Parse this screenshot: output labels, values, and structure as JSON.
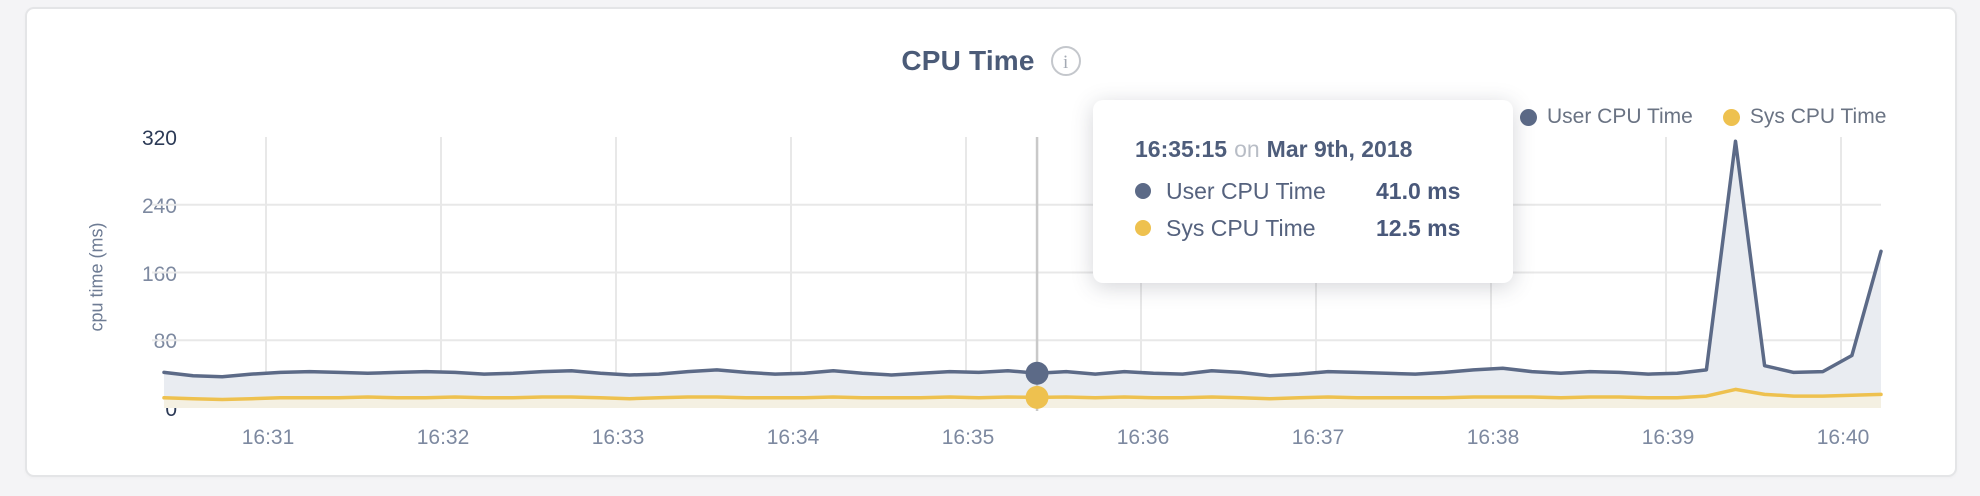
{
  "card": {
    "title": "CPU Time",
    "info_icon_glyph": "i"
  },
  "legend": {
    "items": [
      {
        "label": "User CPU Time",
        "color": "#5c6a87"
      },
      {
        "label": "Sys CPU Time",
        "color": "#eec14f"
      }
    ]
  },
  "tooltip": {
    "time": "16:35:15",
    "connector": "on",
    "date": "Mar 9th, 2018",
    "rows": [
      {
        "label": "User CPU Time",
        "value": "41.0 ms",
        "color": "#5c6a87"
      },
      {
        "label": "Sys CPU Time",
        "value": "12.5 ms",
        "color": "#eec14f"
      }
    ]
  },
  "chart_data": {
    "type": "area",
    "title": "CPU Time",
    "ylabel": "cpu time (ms)",
    "ylim": [
      0,
      320
    ],
    "y_ticks": [
      320,
      240,
      160,
      80,
      0
    ],
    "x_ticks": [
      "16:31",
      "16:32",
      "16:33",
      "16:34",
      "16:35",
      "16:36",
      "16:37",
      "16:38",
      "16:39",
      "16:40"
    ],
    "grid": true,
    "legend_position": "top-right",
    "sample_interval_seconds": 10,
    "x_range": [
      "16:30:24",
      "16:40:14"
    ],
    "hover": {
      "index": 30,
      "time": "16:35:15",
      "date": "Mar 9th, 2018",
      "user_cpu_ms": 41.0,
      "sys_cpu_ms": 12.5,
      "line_color": "#c9c9c9"
    },
    "series": [
      {
        "name": "User CPU Time",
        "color": "#5c6a87",
        "fill": "#e9ecf1",
        "values": [
          42,
          38,
          37,
          40,
          42,
          43,
          42,
          41,
          42,
          43,
          42,
          40,
          41,
          43,
          44,
          41,
          39,
          40,
          43,
          45,
          42,
          40,
          41,
          44,
          41,
          39,
          41,
          43,
          42,
          44,
          41,
          43,
          40,
          43,
          41,
          40,
          44,
          42,
          38,
          40,
          43,
          42,
          41,
          40,
          42,
          45,
          47,
          43,
          41,
          43,
          42,
          40,
          41,
          45,
          315,
          50,
          42,
          43,
          62,
          185
        ]
      },
      {
        "name": "Sys CPU Time",
        "color": "#eec14f",
        "fill": "#f4f0e2",
        "values": [
          12,
          11,
          10,
          11,
          12,
          12,
          12,
          13,
          12,
          12,
          13,
          12,
          12,
          13,
          13,
          12,
          11,
          12,
          13,
          13,
          12,
          12,
          12,
          13,
          12,
          12,
          12,
          13,
          12,
          13,
          12.5,
          13,
          12,
          13,
          12,
          12,
          13,
          12,
          11,
          12,
          13,
          12,
          12,
          12,
          12,
          13,
          13,
          13,
          12,
          13,
          13,
          12,
          12,
          14,
          22,
          16,
          14,
          14,
          15,
          16
        ]
      }
    ],
    "style": {
      "grid_color": "#e8e8e8",
      "tick_color": "#7d89a0",
      "tick_color_ends": "#2c3a56"
    }
  }
}
